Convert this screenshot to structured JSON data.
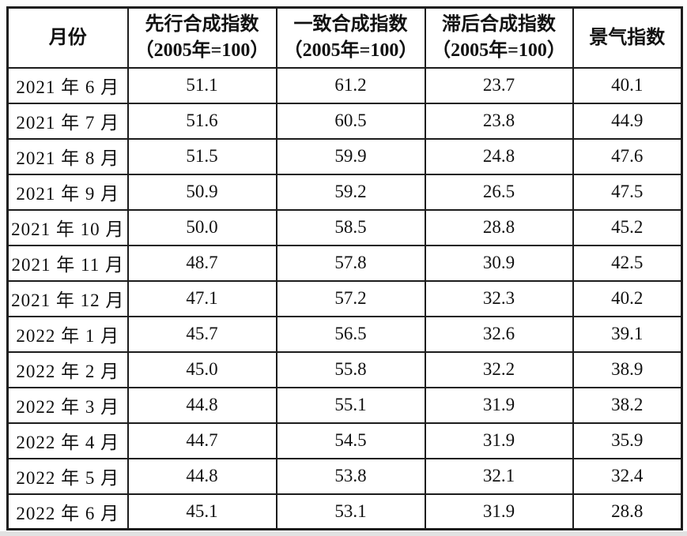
{
  "page": {
    "background": "#fdfdfd",
    "table_background": "#ffffff",
    "border_color": "#1c1c1c",
    "text_color": "#111111"
  },
  "chart_data": {
    "type": "table",
    "title": "",
    "columns": [
      {
        "label": "月份",
        "sublabel": ""
      },
      {
        "label": "先行合成指数",
        "sublabel": "（2005年=100）"
      },
      {
        "label": "一致合成指数",
        "sublabel": "（2005年=100）"
      },
      {
        "label": "滞后合成指数",
        "sublabel": "（2005年=100）"
      },
      {
        "label": "景气指数",
        "sublabel": ""
      }
    ],
    "rows": [
      {
        "month": "2021 年 6 月",
        "values": [
          "51.1",
          "61.2",
          "23.7",
          "40.1"
        ]
      },
      {
        "month": "2021 年 7 月",
        "values": [
          "51.6",
          "60.5",
          "23.8",
          "44.9"
        ]
      },
      {
        "month": "2021 年 8 月",
        "values": [
          "51.5",
          "59.9",
          "24.8",
          "47.6"
        ]
      },
      {
        "month": "2021 年 9 月",
        "values": [
          "50.9",
          "59.2",
          "26.5",
          "47.5"
        ]
      },
      {
        "month": "2021 年 10 月",
        "values": [
          "50.0",
          "58.5",
          "28.8",
          "45.2"
        ]
      },
      {
        "month": "2021 年 11 月",
        "values": [
          "48.7",
          "57.8",
          "30.9",
          "42.5"
        ]
      },
      {
        "month": "2021 年 12 月",
        "values": [
          "47.1",
          "57.2",
          "32.3",
          "40.2"
        ]
      },
      {
        "month": "2022 年 1 月",
        "values": [
          "45.7",
          "56.5",
          "32.6",
          "39.1"
        ]
      },
      {
        "month": "2022 年 2 月",
        "values": [
          "45.0",
          "55.8",
          "32.2",
          "38.9"
        ]
      },
      {
        "month": "2022 年 3 月",
        "values": [
          "44.8",
          "55.1",
          "31.9",
          "38.2"
        ]
      },
      {
        "month": "2022 年 4 月",
        "values": [
          "44.7",
          "54.5",
          "31.9",
          "35.9"
        ]
      },
      {
        "month": "2022 年 5 月",
        "values": [
          "44.8",
          "53.8",
          "32.1",
          "32.4"
        ]
      },
      {
        "month": "2022 年 6 月",
        "values": [
          "45.1",
          "53.1",
          "31.9",
          "28.8"
        ]
      }
    ]
  }
}
